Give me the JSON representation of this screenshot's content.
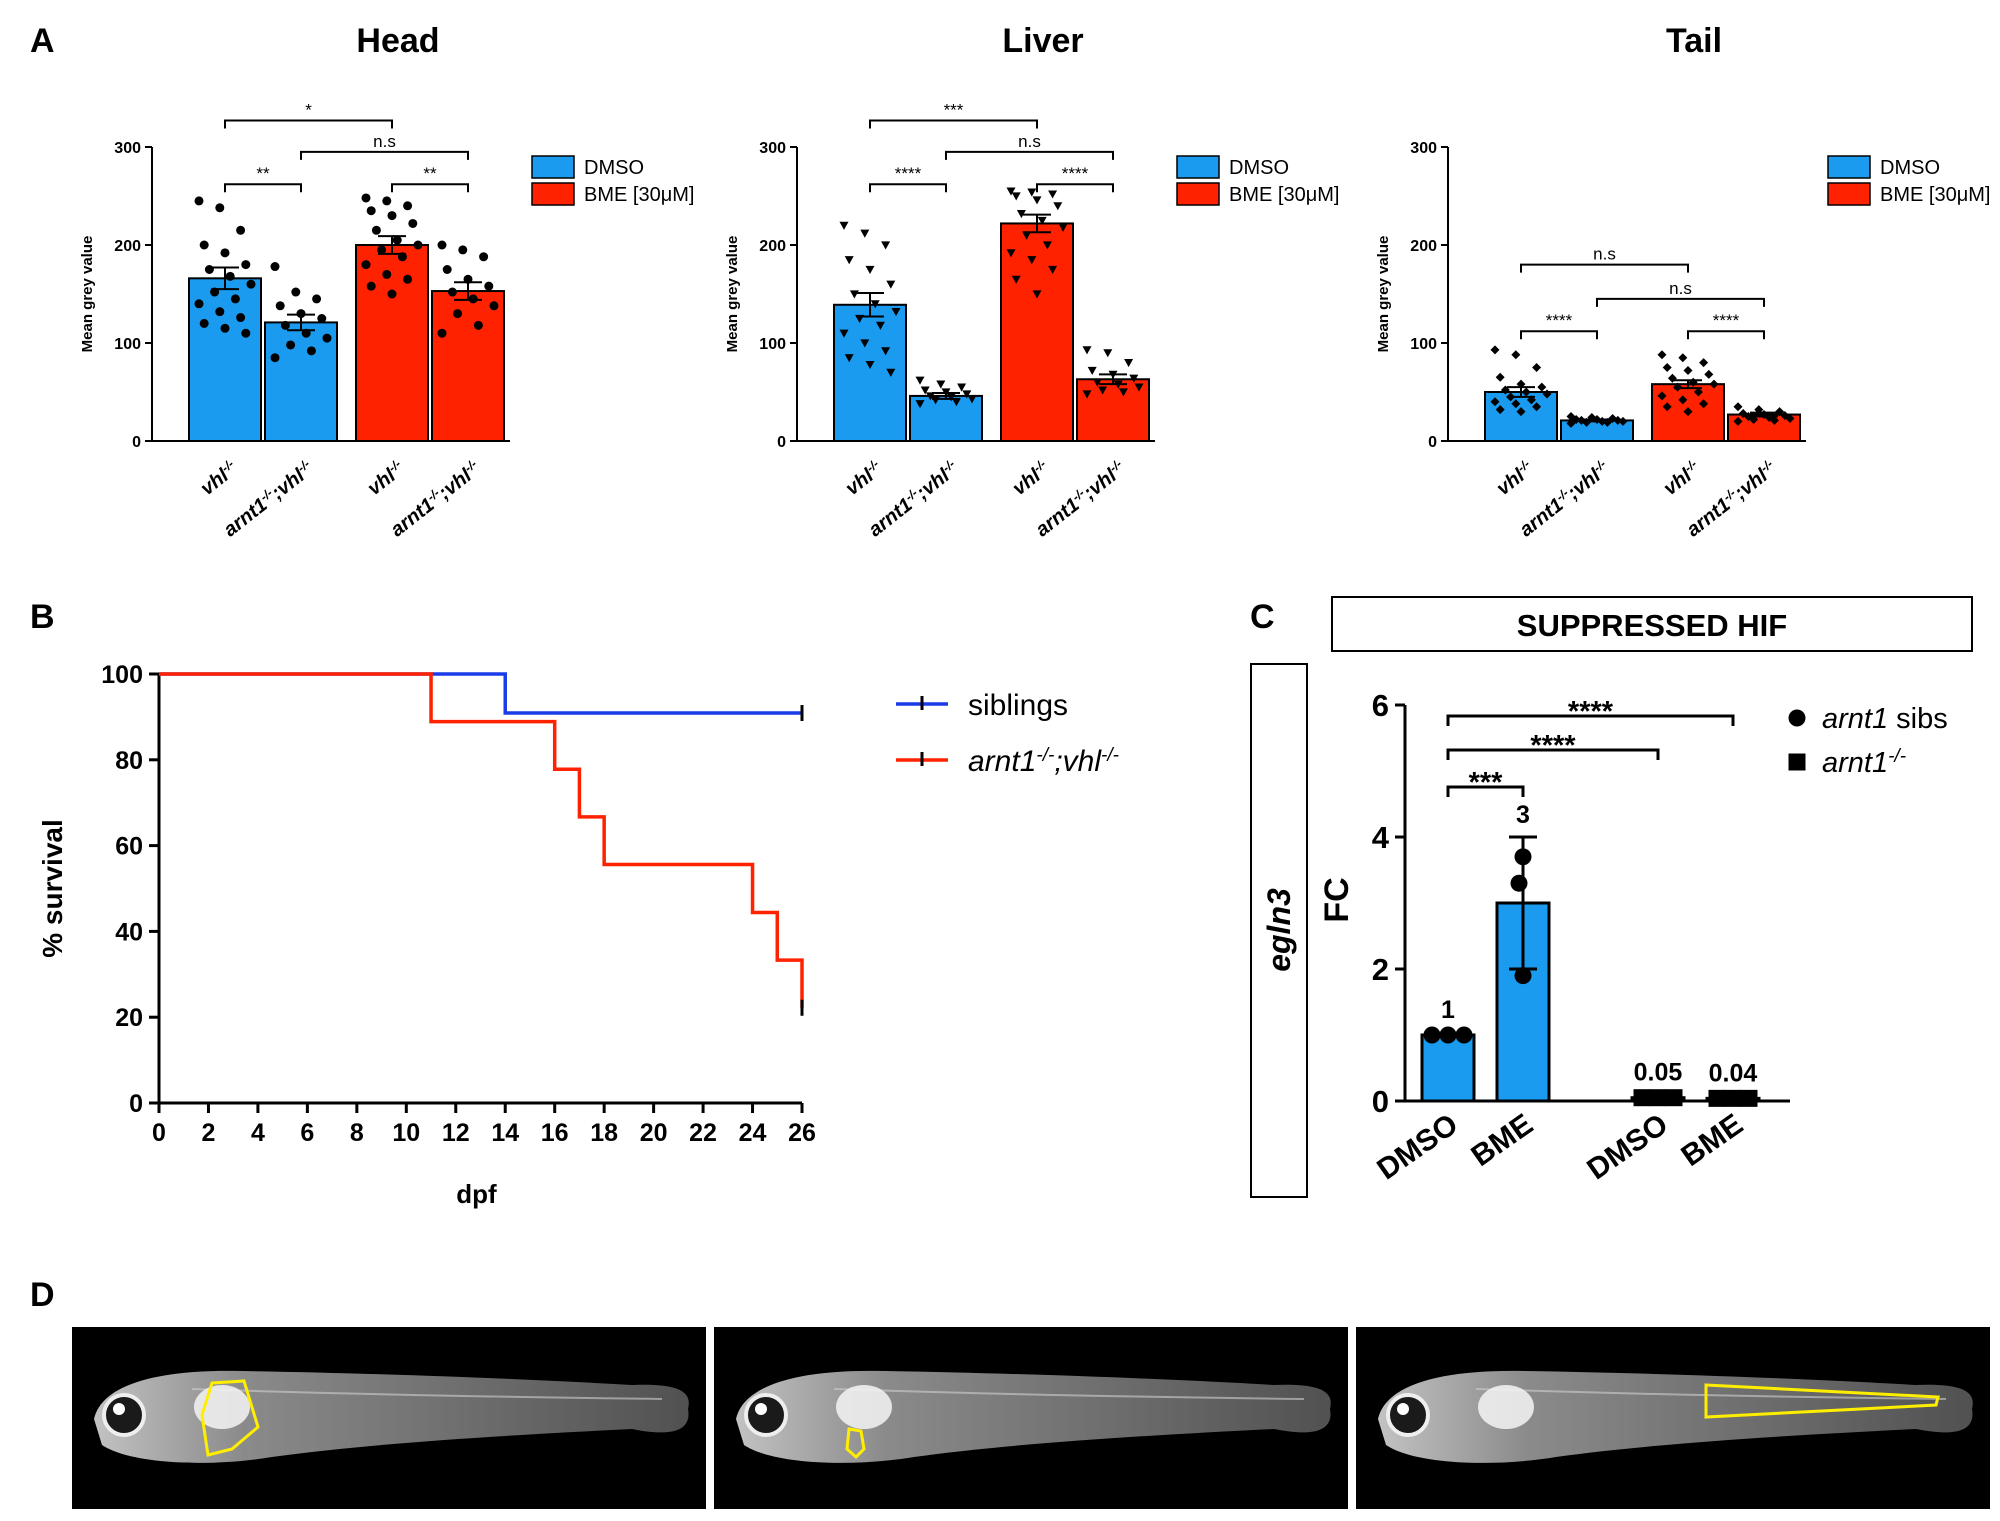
{
  "panels": {
    "a": {
      "label": "A"
    },
    "b": {
      "label": "B"
    },
    "c": {
      "label": "C"
    },
    "d": {
      "label": "D"
    }
  },
  "colors": {
    "dmso": "#1a9bf0",
    "bme": "#ff2200",
    "siblings": "#1a3be8",
    "arnt": "#ff2200",
    "roi": "#ffee00",
    "fish_bg": "#000000"
  },
  "legend_a": {
    "dmso": "DMSO",
    "bme": "BME [30μM]"
  },
  "chart_data": [
    {
      "id": "head",
      "type": "bar",
      "title": "Head",
      "xlabel": "",
      "ylabel": "Mean grey value",
      "ylim": [
        0,
        300
      ],
      "yticks": [
        "0",
        "100",
        "200",
        "300"
      ],
      "categories": [
        {
          "genotype": "vhl",
          "sup1": "-/-",
          "sup2": ""
        },
        {
          "genotype": "arnt1",
          "sup1": "-/-",
          "mid": ";vhl",
          "sup2": "-/-"
        },
        {
          "genotype": "vhl",
          "sup1": "-/-",
          "sup2": ""
        },
        {
          "genotype": "arnt1",
          "sup1": "-/-",
          "mid": ";vhl",
          "sup2": "-/-"
        }
      ],
      "series": [
        {
          "name": "DMSO",
          "bars": [
            0,
            1
          ]
        },
        {
          "name": "BME [30μM]",
          "bars": [
            2,
            3
          ]
        }
      ],
      "values": [
        166,
        121,
        200,
        153
      ],
      "sem": [
        11,
        8,
        9,
        9
      ],
      "marker": "circle",
      "points": [
        [
          245,
          238,
          215,
          200,
          192,
          180,
          175,
          168,
          160,
          152,
          145,
          140,
          132,
          126,
          120,
          115,
          110
        ],
        [
          178,
          152,
          145,
          138,
          130,
          125,
          118,
          110,
          105,
          98,
          92,
          85
        ],
        [
          248,
          245,
          240,
          235,
          230,
          222,
          215,
          205,
          200,
          195,
          188,
          180,
          170,
          165,
          158,
          150
        ],
        [
          200,
          195,
          188,
          175,
          165,
          158,
          152,
          145,
          138,
          130,
          118,
          110
        ]
      ],
      "comparisons": [
        {
          "from": 0,
          "to": 2,
          "label": "*",
          "level": 3
        },
        {
          "from": 1,
          "to": 3,
          "label": "n.s",
          "level": 2
        },
        {
          "from": 0,
          "to": 1,
          "label": "**",
          "level": 1
        },
        {
          "from": 2,
          "to": 3,
          "label": "**",
          "level": 1
        }
      ]
    },
    {
      "id": "liver",
      "type": "bar",
      "title": "Liver",
      "xlabel": "",
      "ylabel": "Mean grey value",
      "ylim": [
        0,
        300
      ],
      "yticks": [
        "0",
        "100",
        "200",
        "300"
      ],
      "categories": [
        {
          "genotype": "vhl",
          "sup1": "-/-",
          "sup2": ""
        },
        {
          "genotype": "arnt1",
          "sup1": "-/-",
          "mid": ";vhl",
          "sup2": "-/-"
        },
        {
          "genotype": "vhl",
          "sup1": "-/-",
          "sup2": ""
        },
        {
          "genotype": "arnt1",
          "sup1": "-/-",
          "mid": ";vhl",
          "sup2": "-/-"
        }
      ],
      "series": [
        {
          "name": "DMSO",
          "bars": [
            0,
            1
          ]
        },
        {
          "name": "BME [30μM]",
          "bars": [
            2,
            3
          ]
        }
      ],
      "values": [
        139,
        46,
        222,
        63
      ],
      "sem": [
        12,
        3,
        9,
        5
      ],
      "marker": "triangle",
      "points": [
        [
          220,
          212,
          200,
          185,
          175,
          160,
          150,
          140,
          132,
          125,
          118,
          110,
          100,
          92,
          85,
          78,
          70
        ],
        [
          62,
          58,
          55,
          52,
          50,
          48,
          46,
          45,
          43,
          42,
          40,
          38
        ],
        [
          255,
          254,
          252,
          250,
          246,
          240,
          232,
          225,
          218,
          210,
          200,
          192,
          185,
          175,
          165,
          150
        ],
        [
          93,
          90,
          80,
          72,
          68,
          64,
          60,
          58,
          55,
          52,
          50,
          48
        ]
      ],
      "comparisons": [
        {
          "from": 0,
          "to": 2,
          "label": "***",
          "level": 3
        },
        {
          "from": 1,
          "to": 3,
          "label": "n.s",
          "level": 2
        },
        {
          "from": 0,
          "to": 1,
          "label": "****",
          "level": 1
        },
        {
          "from": 2,
          "to": 3,
          "label": "****",
          "level": 1
        }
      ]
    },
    {
      "id": "tail",
      "type": "bar",
      "title": "Tail",
      "xlabel": "",
      "ylabel": "Mean grey value",
      "ylim": [
        0,
        300
      ],
      "yticks": [
        "0",
        "100",
        "200",
        "300"
      ],
      "categories": [
        {
          "genotype": "vhl",
          "sup1": "-/-",
          "sup2": ""
        },
        {
          "genotype": "arnt1",
          "sup1": "-/-",
          "mid": ";vhl",
          "sup2": "-/-"
        },
        {
          "genotype": "vhl",
          "sup1": "-/-",
          "sup2": ""
        },
        {
          "genotype": "arnt1",
          "sup1": "-/-",
          "mid": ";vhl",
          "sup2": "-/-"
        }
      ],
      "series": [
        {
          "name": "DMSO",
          "bars": [
            0,
            1
          ]
        },
        {
          "name": "BME [30μM]",
          "bars": [
            2,
            3
          ]
        }
      ],
      "values": [
        50,
        21,
        58,
        27
      ],
      "sem": [
        5,
        1,
        4,
        2
      ],
      "marker": "diamond",
      "points": [
        [
          93,
          88,
          75,
          65,
          58,
          55,
          52,
          50,
          48,
          45,
          42,
          40,
          38,
          35,
          32,
          30
        ],
        [
          25,
          24,
          23,
          22,
          22,
          21,
          21,
          20,
          20,
          19,
          19,
          18
        ],
        [
          88,
          85,
          80,
          75,
          72,
          68,
          64,
          60,
          58,
          55,
          50,
          46,
          42,
          38,
          35,
          30
        ],
        [
          35,
          32,
          30,
          28,
          27,
          26,
          25,
          24,
          23,
          22,
          21,
          20
        ]
      ],
      "comparisons": [
        {
          "from": 0,
          "to": 2,
          "label": "n.s",
          "level": 3
        },
        {
          "from": 1,
          "to": 3,
          "label": "n.s",
          "level": 2
        },
        {
          "from": 0,
          "to": 1,
          "label": "****",
          "level": 1
        },
        {
          "from": 2,
          "to": 3,
          "label": "****",
          "level": 1
        }
      ]
    },
    {
      "id": "survival",
      "type": "line",
      "title": "",
      "xlabel": "dpf",
      "ylabel": "% survival",
      "xlim": [
        0,
        26
      ],
      "ylim": [
        0,
        100
      ],
      "xticks": [
        "0",
        "2",
        "4",
        "6",
        "8",
        "10",
        "12",
        "14",
        "16",
        "18",
        "20",
        "22",
        "24",
        "26"
      ],
      "yticks": [
        "0",
        "20",
        "40",
        "60",
        "80",
        "100"
      ],
      "legend_position": "right",
      "series": [
        {
          "name": "siblings",
          "genotype_italic": "",
          "x": [
            0,
            14,
            26
          ],
          "y": [
            100,
            90.9,
            90.9
          ],
          "step": true,
          "censor": [
            [
              26,
              90.9
            ]
          ]
        },
        {
          "name": "",
          "genotype": "arnt1",
          "sup1": "-/-",
          "mid": ";vhl",
          "sup2": "-/-",
          "x": [
            0,
            11,
            16,
            17,
            18,
            24,
            25,
            26
          ],
          "y": [
            100,
            88.9,
            77.8,
            66.7,
            55.6,
            44.4,
            33.3,
            22.2
          ],
          "step": true,
          "censor": [
            [
              26,
              22.2
            ]
          ]
        }
      ]
    },
    {
      "id": "egln3",
      "type": "bar",
      "title": "SUPPRESSED HIF",
      "row_label": "egln3",
      "xlabel": "",
      "ylabel": "FC",
      "ylim": [
        0,
        6
      ],
      "yticks": [
        "0",
        "2",
        "4",
        "6"
      ],
      "categories": [
        "DMSO",
        "BME",
        "DMSO",
        "BME"
      ],
      "values": [
        1,
        3,
        0.05,
        0.04
      ],
      "value_labels": [
        "1",
        "3",
        "0.05",
        "0.04"
      ],
      "sd": [
        0,
        1,
        0,
        0
      ],
      "points": [
        [
          1,
          1,
          1
        ],
        [
          3.7,
          3.3,
          1.9
        ],
        [
          0.05,
          0.05,
          0.05
        ],
        [
          0.04,
          0.04,
          0.04
        ]
      ],
      "markers": [
        "circle",
        "circle",
        "square",
        "square"
      ],
      "legend": [
        {
          "marker": "circle",
          "italic": "arnt1",
          "plain": " sibs",
          "sup": ""
        },
        {
          "marker": "square",
          "italic": "arnt1",
          "plain": "",
          "sup": "-/-"
        }
      ],
      "comparisons": [
        {
          "from": 0,
          "to": 3,
          "label": "****",
          "level": 3
        },
        {
          "from": 0,
          "to": 2,
          "label": "****",
          "level": 2
        },
        {
          "from": 0,
          "to": 1,
          "label": "***",
          "level": 1
        }
      ]
    }
  ]
}
